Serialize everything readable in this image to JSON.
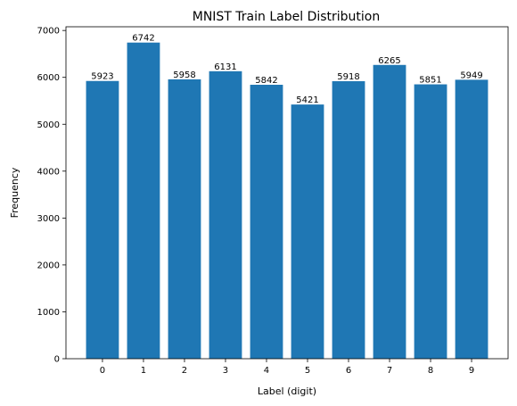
{
  "chart_data": {
    "type": "bar",
    "title": "MNIST Train Label Distribution",
    "xlabel": "Label (digit)",
    "ylabel": "Frequency",
    "categories": [
      "0",
      "1",
      "2",
      "3",
      "4",
      "5",
      "6",
      "7",
      "8",
      "9"
    ],
    "values": [
      5923,
      6742,
      5958,
      6131,
      5842,
      5421,
      5918,
      6265,
      5851,
      5949
    ],
    "data_labels": [
      "5923",
      "6742",
      "5958",
      "6131",
      "5842",
      "5421",
      "5918",
      "6265",
      "5851",
      "5949"
    ],
    "ylim": [
      0,
      7079
    ],
    "yticks": [
      0,
      1000,
      2000,
      3000,
      4000,
      5000,
      6000,
      7000
    ],
    "ytick_labels": [
      "0",
      "1000",
      "2000",
      "3000",
      "4000",
      "5000",
      "6000",
      "7000"
    ],
    "grid": false,
    "bar_color": "#1f77b4"
  }
}
